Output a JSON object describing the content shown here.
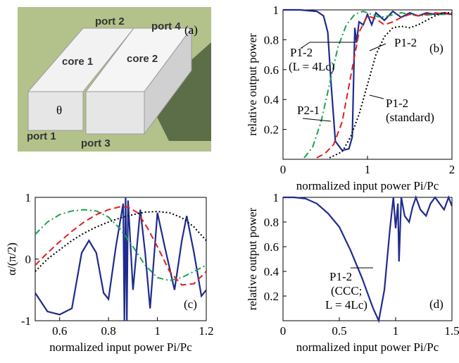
{
  "illustration": {
    "labels": [
      "port 2",
      "port 4",
      "(a)",
      "core 1",
      "core 2",
      "θ",
      "port 1",
      "port 3"
    ]
  },
  "chart_data": [
    {
      "type": "line",
      "panel_label": "(b)",
      "xlabel": "normalized input  power Pi/Pc",
      "ylabel": "relative output power",
      "xlim": [
        0,
        2
      ],
      "xticks": [
        0,
        1,
        2
      ],
      "ylim": [
        0,
        1
      ],
      "yticks": [
        0.2,
        0.4,
        0.6,
        0.8,
        1
      ],
      "annotations": [
        "P1-2",
        "(L = 4Lc)",
        "P1-2",
        "P1-2",
        "(standard)",
        "P2-1"
      ],
      "series": [
        {
          "color": "#1f2b8f",
          "style": "solid",
          "x": [
            0,
            0.2,
            0.4,
            0.48,
            0.53,
            0.57,
            0.62,
            0.7,
            0.78,
            0.82,
            0.85,
            0.87,
            0.9,
            0.95,
            1.0,
            1.05,
            1.1,
            1.2,
            1.3,
            1.4,
            1.5,
            1.6,
            1.7,
            1.8,
            1.9,
            2.0
          ],
          "values": [
            1,
            1,
            0.99,
            0.96,
            0.85,
            0.5,
            0.12,
            0.06,
            0.07,
            0.15,
            0.88,
            0.78,
            0.92,
            0.9,
            0.97,
            0.9,
            0.98,
            0.93,
            0.99,
            0.95,
            0.98,
            0.96,
            0.98,
            0.97,
            0.98,
            0.97
          ]
        },
        {
          "color": "#1aa34a",
          "style": "dashdot",
          "x": [
            0.25,
            0.35,
            0.45,
            0.55,
            0.65,
            0.75,
            0.85,
            0.95,
            1.05,
            1.15,
            1.25,
            1.4,
            1.6,
            1.8,
            2.0
          ],
          "values": [
            0.01,
            0.08,
            0.25,
            0.5,
            0.75,
            0.9,
            0.97,
            0.99,
            0.97,
            0.95,
            0.96,
            0.98,
            0.96,
            0.97,
            0.97
          ]
        },
        {
          "color": "#e02020",
          "style": "dashed",
          "x": [
            0.4,
            0.5,
            0.6,
            0.7,
            0.8,
            0.9,
            1.0,
            1.1,
            1.2,
            1.3,
            1.4,
            1.5,
            1.6,
            1.8,
            2.0
          ],
          "values": [
            0.01,
            0.04,
            0.1,
            0.25,
            0.55,
            0.85,
            0.96,
            0.94,
            0.9,
            0.92,
            0.95,
            0.97,
            0.96,
            0.98,
            0.97
          ]
        },
        {
          "color": "#000000",
          "style": "dotted",
          "x": [
            0.55,
            0.7,
            0.8,
            0.9,
            1.0,
            1.1,
            1.2,
            1.3,
            1.4,
            1.5,
            1.6,
            1.7,
            1.8,
            1.9,
            2.0
          ],
          "values": [
            0.01,
            0.05,
            0.15,
            0.3,
            0.5,
            0.7,
            0.82,
            0.88,
            0.89,
            0.88,
            0.9,
            0.93,
            0.96,
            0.98,
            0.98
          ]
        }
      ]
    },
    {
      "type": "line",
      "panel_label": "(c)",
      "xlabel": "normalized input  power Pi/Pc",
      "ylabel": "α/(π/2)",
      "xlim": [
        0.5,
        1.2
      ],
      "xticks": [
        0.6,
        0.8,
        1,
        1.2
      ],
      "ylim": [
        -1,
        1
      ],
      "yticks": [
        -1,
        0,
        1
      ],
      "annotations": [],
      "series": [
        {
          "color": "#1f2b8f",
          "style": "solid",
          "x": [
            0.5,
            0.55,
            0.6,
            0.65,
            0.69,
            0.72,
            0.75,
            0.78,
            0.8,
            0.83,
            0.86,
            0.865,
            0.87,
            0.875,
            0.88,
            0.9,
            0.93,
            0.95,
            0.97,
            1.0,
            1.03,
            1.07,
            1.1,
            1.12,
            1.15,
            1.18,
            1.2
          ],
          "values": [
            -0.55,
            -0.85,
            -0.9,
            -0.8,
            0.1,
            0.3,
            0.1,
            -0.55,
            -0.65,
            0.2,
            0.9,
            -1,
            1,
            -1,
            0.95,
            -0.5,
            0.8,
            0.1,
            -0.8,
            0.75,
            0.2,
            -0.5,
            0.3,
            0.7,
            0.1,
            -0.6,
            -0.5
          ]
        },
        {
          "color": "#1aa34a",
          "style": "dashdot",
          "x": [
            0.5,
            0.55,
            0.6,
            0.65,
            0.7,
            0.75,
            0.8,
            0.85,
            0.9,
            0.95,
            1.0,
            1.05,
            1.1,
            1.15,
            1.2
          ],
          "values": [
            0.4,
            0.6,
            0.72,
            0.78,
            0.8,
            0.78,
            0.68,
            0.48,
            0.2,
            -0.1,
            -0.3,
            -0.35,
            -0.3,
            -0.2,
            -0.1
          ]
        },
        {
          "color": "#e02020",
          "style": "dashed",
          "x": [
            0.5,
            0.55,
            0.6,
            0.65,
            0.7,
            0.75,
            0.8,
            0.85,
            0.88,
            0.92,
            0.96,
            1.0,
            1.05,
            1.1,
            1.15,
            1.2
          ],
          "values": [
            -0.1,
            0.1,
            0.28,
            0.45,
            0.6,
            0.72,
            0.8,
            0.85,
            0.84,
            0.75,
            0.5,
            0.2,
            -0.2,
            -0.42,
            -0.4,
            -0.2
          ]
        },
        {
          "color": "#000000",
          "style": "dotted",
          "x": [
            0.5,
            0.55,
            0.6,
            0.65,
            0.7,
            0.75,
            0.8,
            0.85,
            0.9,
            0.95,
            1.0,
            1.05,
            1.1,
            1.15,
            1.2
          ],
          "values": [
            -0.2,
            0.0,
            0.15,
            0.3,
            0.42,
            0.52,
            0.6,
            0.67,
            0.72,
            0.76,
            0.77,
            0.75,
            0.67,
            0.52,
            0.3
          ]
        }
      ]
    },
    {
      "type": "line",
      "panel_label": "(d)",
      "xlabel": "normalized input  power Pi/Pc",
      "ylabel": "relative output power",
      "xlim": [
        0,
        1.5
      ],
      "xticks": [
        0,
        0.5,
        1,
        1.5
      ],
      "ylim": [
        0,
        1
      ],
      "yticks": [
        0.2,
        0.4,
        0.6,
        0.8,
        1
      ],
      "annotations": [
        "P1-2",
        "(CCC;",
        "L = 4Lc)"
      ],
      "series": [
        {
          "color": "#1f2b8f",
          "style": "solid",
          "x": [
            0,
            0.1,
            0.2,
            0.3,
            0.4,
            0.5,
            0.6,
            0.7,
            0.8,
            0.85,
            0.9,
            0.95,
            0.98,
            1.0,
            1.02,
            1.03,
            1.05,
            1.08,
            1.12,
            1.15,
            1.18,
            1.22,
            1.27,
            1.31,
            1.35,
            1.39,
            1.43,
            1.47,
            1.5
          ],
          "values": [
            1,
            1,
            0.99,
            0.95,
            0.87,
            0.76,
            0.57,
            0.35,
            0.1,
            0.0,
            0.25,
            0.75,
            1,
            0.75,
            0.95,
            0.48,
            1,
            0.85,
            0.8,
            0.92,
            1,
            0.9,
            0.85,
            0.95,
            1,
            0.95,
            0.9,
            1,
            0.93
          ]
        }
      ]
    }
  ]
}
